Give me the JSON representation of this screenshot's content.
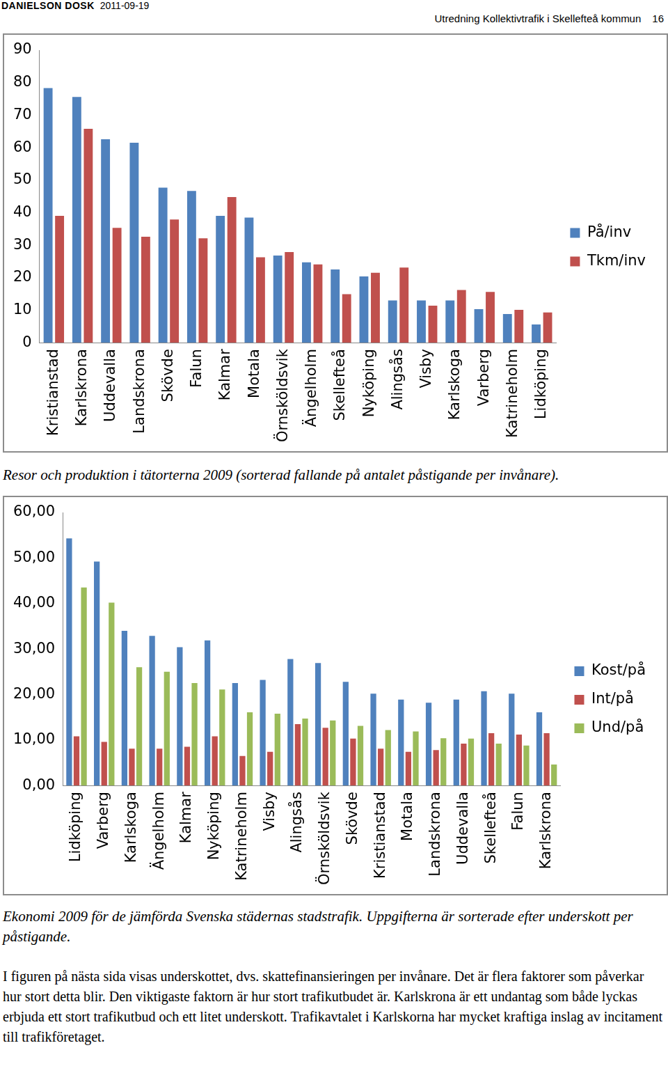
{
  "header": {
    "author": "DANIELSON DOSK",
    "date": "2011-09-19",
    "title": "Utredning Kollektivtrafik i Skellefteå kommun",
    "page": "16"
  },
  "chart_data": [
    {
      "type": "bar",
      "caption": "Resor och produktion i tätorterna 2009 (sorterad fallande på antalet påstigande per invånare).",
      "categories": [
        "Kristianstad",
        "Karlskrona",
        "Uddevalla",
        "Landskrona",
        "Skövde",
        "Falun",
        "Kalmar",
        "Motala",
        "Örnsköldsvik",
        "Ängelholm",
        "Skellefteå",
        "Nyköping",
        "Alingsås",
        "Visby",
        "Karlskoga",
        "Varberg",
        "Katrineholm",
        "Lidköping"
      ],
      "series": [
        {
          "name": "På/inv",
          "color": "#4f81bd",
          "values": [
            78.3,
            75.6,
            62.6,
            61.5,
            47.7,
            46.7,
            39.0,
            38.5,
            26.8,
            24.7,
            22.5,
            20.4,
            13.0,
            13.0,
            13.0,
            10.3,
            8.8,
            5.6
          ]
        },
        {
          "name": "Tkm/inv",
          "color": "#c0504d",
          "values": [
            39.0,
            65.8,
            35.3,
            32.6,
            37.9,
            32.1,
            44.8,
            26.3,
            27.9,
            24.1,
            14.9,
            21.5,
            23.1,
            11.4,
            16.2,
            15.6,
            10.1,
            9.3
          ]
        }
      ],
      "ylim": [
        0,
        90
      ],
      "yticks": [
        0,
        10,
        20,
        30,
        40,
        50,
        60,
        70,
        80,
        90
      ],
      "grid": false,
      "legend": "right"
    },
    {
      "type": "bar",
      "caption": "Ekonomi 2009 för de jämförda Svenska städernas stadstrafik. Uppgifterna är sorterade efter underskott per påstigande.",
      "categories": [
        "Lidköping",
        "Varberg",
        "Karlskoga",
        "Ängelholm",
        "Kalmar",
        "Nyköping",
        "Katrineholm",
        "Visby",
        "Alingsås",
        "Örnsköldsvik",
        "Skövde",
        "Kristianstad",
        "Motala",
        "Landskrona",
        "Uddevalla",
        "Skellefteå",
        "Falun",
        "Karlskrona"
      ],
      "series": [
        {
          "name": "Kost/på",
          "color": "#4f81bd",
          "values": [
            54.3,
            49.2,
            34.0,
            32.9,
            30.4,
            31.9,
            22.5,
            23.2,
            27.8,
            26.9,
            22.8,
            20.2,
            18.9,
            18.2,
            18.9,
            20.7,
            20.2,
            16.1
          ]
        },
        {
          "name": "Int/på",
          "color": "#c0504d",
          "values": [
            10.8,
            9.6,
            8.1,
            8.1,
            8.5,
            10.8,
            6.5,
            7.4,
            13.5,
            12.7,
            10.3,
            8.1,
            7.4,
            7.8,
            9.2,
            11.5,
            11.2,
            11.5
          ]
        },
        {
          "name": "Und/på",
          "color": "#9bbb59",
          "values": [
            43.5,
            40.2,
            26.0,
            25.0,
            22.5,
            21.1,
            16.1,
            15.8,
            14.7,
            14.3,
            13.1,
            12.2,
            11.9,
            10.4,
            10.3,
            9.2,
            8.8,
            4.6
          ]
        }
      ],
      "ylim": [
        0,
        60
      ],
      "yticks": [
        {
          "value": 0,
          "label": "0,00"
        },
        {
          "value": 10,
          "label": "10,00"
        },
        {
          "value": 20,
          "label": "20,00"
        },
        {
          "value": 30,
          "label": "30,00"
        },
        {
          "value": 40,
          "label": "40,00"
        },
        {
          "value": 50,
          "label": "50,00"
        },
        {
          "value": 60,
          "label": "60,00"
        }
      ],
      "grid": false,
      "legend": "right"
    }
  ],
  "text": "I figuren på nästa sida visas underskottet, dvs. skattefinansieringen per invånare. Det är flera faktorer som påverkar hur stort detta blir. Den viktigaste faktorn är hur stort trafikutbudet är. Karlskrona är ett undantag som både lyckas erbjuda ett stort trafikutbud och ett litet underskott. Trafikavtalet i Karlskorna har mycket kraftiga inslag av incitament till trafikföretaget."
}
